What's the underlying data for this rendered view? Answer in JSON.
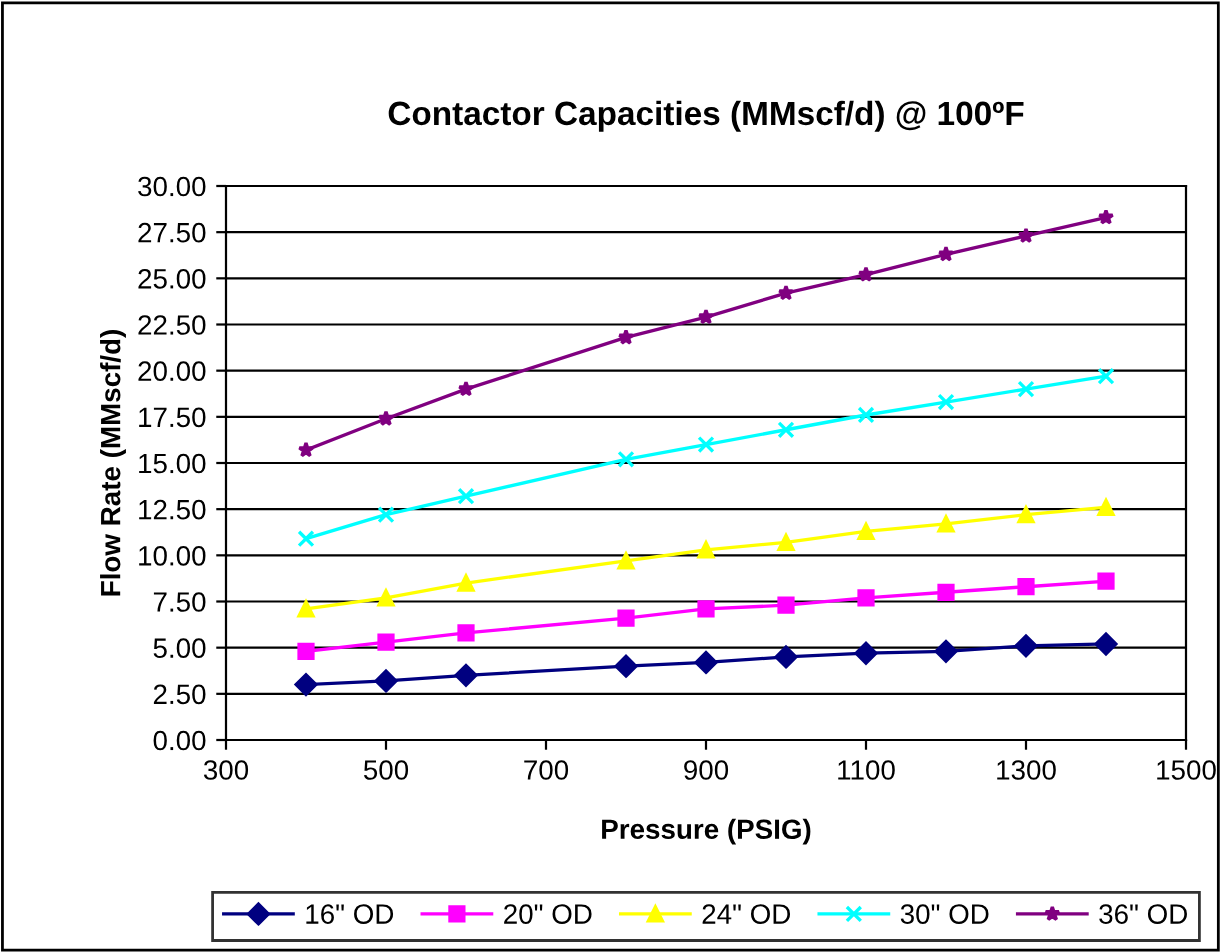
{
  "chart_data": {
    "type": "line",
    "title": "Contactor Capacities (MMscf/d) @ 100ºF",
    "xlabel": "Pressure (PSIG)",
    "ylabel": "Flow Rate (MMscf/d)",
    "x": [
      400,
      500,
      600,
      800,
      900,
      1000,
      1100,
      1200,
      1300,
      1400
    ],
    "series": [
      {
        "name": "16\" OD",
        "color": "#000080",
        "marker": "diamond",
        "values": [
          3.0,
          3.2,
          3.5,
          4.0,
          4.2,
          4.5,
          4.7,
          4.8,
          5.1,
          5.2
        ]
      },
      {
        "name": "20\" OD",
        "color": "#ff00ff",
        "marker": "square",
        "values": [
          4.8,
          5.3,
          5.8,
          6.6,
          7.1,
          7.3,
          7.7,
          8.0,
          8.3,
          8.6
        ]
      },
      {
        "name": "24\" OD",
        "color": "#ffff00",
        "marker": "triangle",
        "values": [
          7.1,
          7.7,
          8.5,
          9.7,
          10.3,
          10.7,
          11.3,
          11.7,
          12.2,
          12.6
        ]
      },
      {
        "name": "30\" OD",
        "color": "#00ffff",
        "marker": "cross",
        "values": [
          10.9,
          12.2,
          13.2,
          15.2,
          16.0,
          16.8,
          17.6,
          18.3,
          19.0,
          19.7
        ]
      },
      {
        "name": "36\" OD",
        "color": "#800080",
        "marker": "star",
        "values": [
          15.7,
          17.4,
          19.0,
          21.8,
          22.9,
          24.2,
          25.2,
          26.3,
          27.3,
          28.3
        ]
      }
    ],
    "xlim": [
      300,
      1500
    ],
    "xticks": [
      300,
      500,
      700,
      900,
      1100,
      1300,
      1500
    ],
    "ylim": [
      0,
      30
    ],
    "yticks": [
      {
        "value": 0,
        "label": "0.00"
      },
      {
        "value": 2.5,
        "label": "2.50"
      },
      {
        "value": 5,
        "label": "5.00"
      },
      {
        "value": 7.5,
        "label": "7.50"
      },
      {
        "value": 10,
        "label": "10.00"
      },
      {
        "value": 12.5,
        "label": "12.50"
      },
      {
        "value": 15,
        "label": "15.00"
      },
      {
        "value": 17.5,
        "label": "17.50"
      },
      {
        "value": 20,
        "label": "20.00"
      },
      {
        "value": 22.5,
        "label": "22.50"
      },
      {
        "value": 25,
        "label": "25.00"
      },
      {
        "value": 27.5,
        "label": "27.50"
      },
      {
        "value": 30,
        "label": "30.00"
      }
    ],
    "grid": "y",
    "legend": "bottom",
    "line_style": "solid"
  }
}
